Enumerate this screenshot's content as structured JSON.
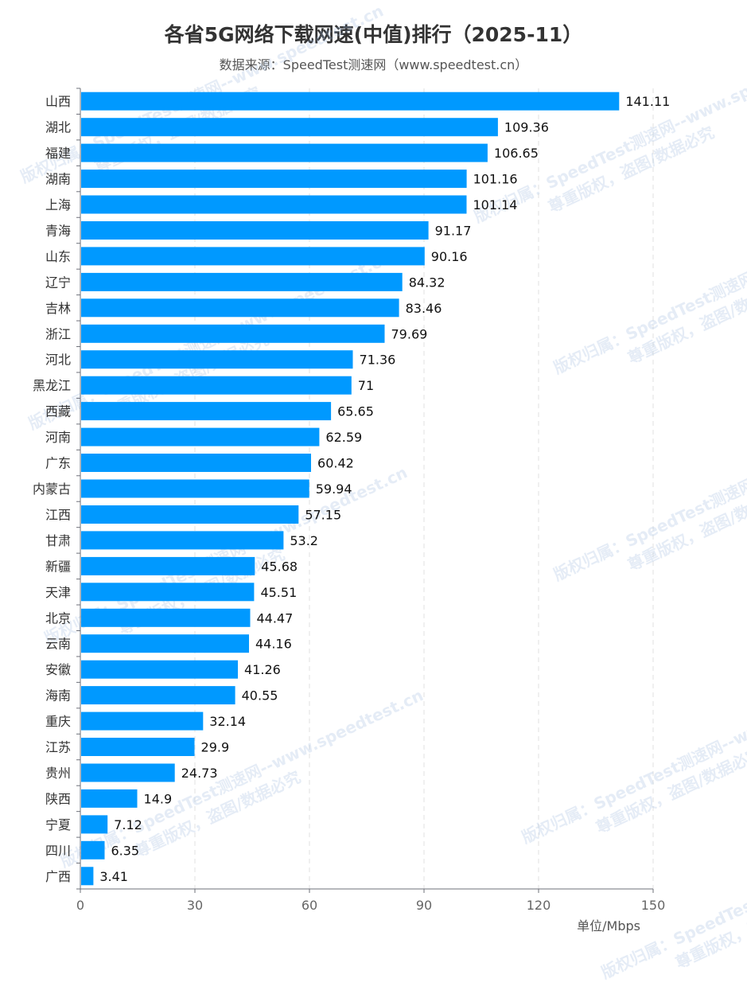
{
  "title": "各省5G网络下载网速(中值)排行（2025-11）",
  "subtitle": "数据来源：SpeedTest测速网（www.speedtest.cn）",
  "watermark": {
    "line1": "版权归属：SpeedTest测速网--www.speedtest.cn",
    "line2": "尊重版权，盗图/数据必究"
  },
  "chart_data": {
    "type": "bar",
    "orientation": "horizontal",
    "title": "各省5G网络下载网速(中值)排行（2025-11）",
    "subtitle": "数据来源：SpeedTest测速网（www.speedtest.cn）",
    "xlabel": "单位/Mbps",
    "ylabel": "",
    "xlim": [
      0,
      150
    ],
    "xticks": [
      0,
      30,
      60,
      90,
      120,
      150
    ],
    "grid": true,
    "bar_color": "#0099ff",
    "categories": [
      "山西",
      "湖北",
      "福建",
      "湖南",
      "上海",
      "青海",
      "山东",
      "辽宁",
      "吉林",
      "浙江",
      "河北",
      "黑龙江",
      "西藏",
      "河南",
      "广东",
      "内蒙古",
      "江西",
      "甘肃",
      "新疆",
      "天津",
      "北京",
      "云南",
      "安徽",
      "海南",
      "重庆",
      "江苏",
      "贵州",
      "陕西",
      "宁夏",
      "四川",
      "广西"
    ],
    "values": [
      141.11,
      109.36,
      106.65,
      101.16,
      101.14,
      91.17,
      90.16,
      84.32,
      83.46,
      79.69,
      71.36,
      71,
      65.65,
      62.59,
      60.42,
      59.94,
      57.15,
      53.2,
      45.68,
      45.51,
      44.47,
      44.16,
      41.26,
      40.55,
      32.14,
      29.9,
      24.73,
      14.9,
      7.12,
      6.35,
      3.41
    ]
  }
}
